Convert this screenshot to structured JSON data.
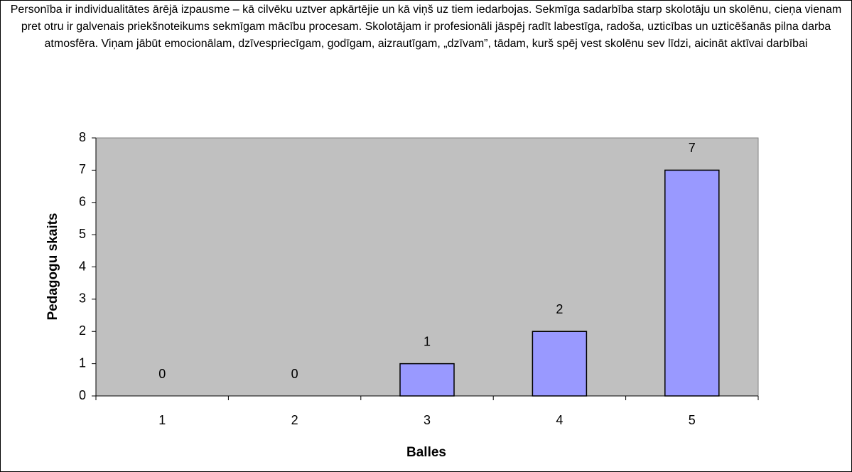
{
  "chart_data": {
    "type": "bar",
    "title": "Personība ir individualitātes ārējā izpausme – kā cilvēku uztver apkārtējie un kā viņš uz tiem iedarbojas. Sekmīga sadarbība starp skolotāju un skolēnu, cieņa vienam pret otru ir galvenais priekšnoteikums sekmīgam mācību procesam. Skolotājam ir profesionāli jāspēj radīt labestīga, radoša, uzticības un uzticēšanās pilna darba atmosfēra. Viņam jābūt emocionālam, dzīvespriecīgam, godīgam, aizrautīgam, „dzīvam”, tādam, kurš spēj vest skolēnu sev līdzi, aicināt aktīvai darbībai",
    "x_label": "Balles",
    "y_label": "Pedagogu skaits",
    "categories": [
      "1",
      "2",
      "3",
      "4",
      "5"
    ],
    "values": [
      0,
      0,
      1,
      2,
      7
    ],
    "color": "#9999ff",
    "plot_background": "#c0c0c0",
    "ylim": [
      0,
      8
    ],
    "yticks": [
      0,
      1,
      2,
      3,
      4,
      5,
      6,
      7,
      8
    ],
    "grid": false
  }
}
